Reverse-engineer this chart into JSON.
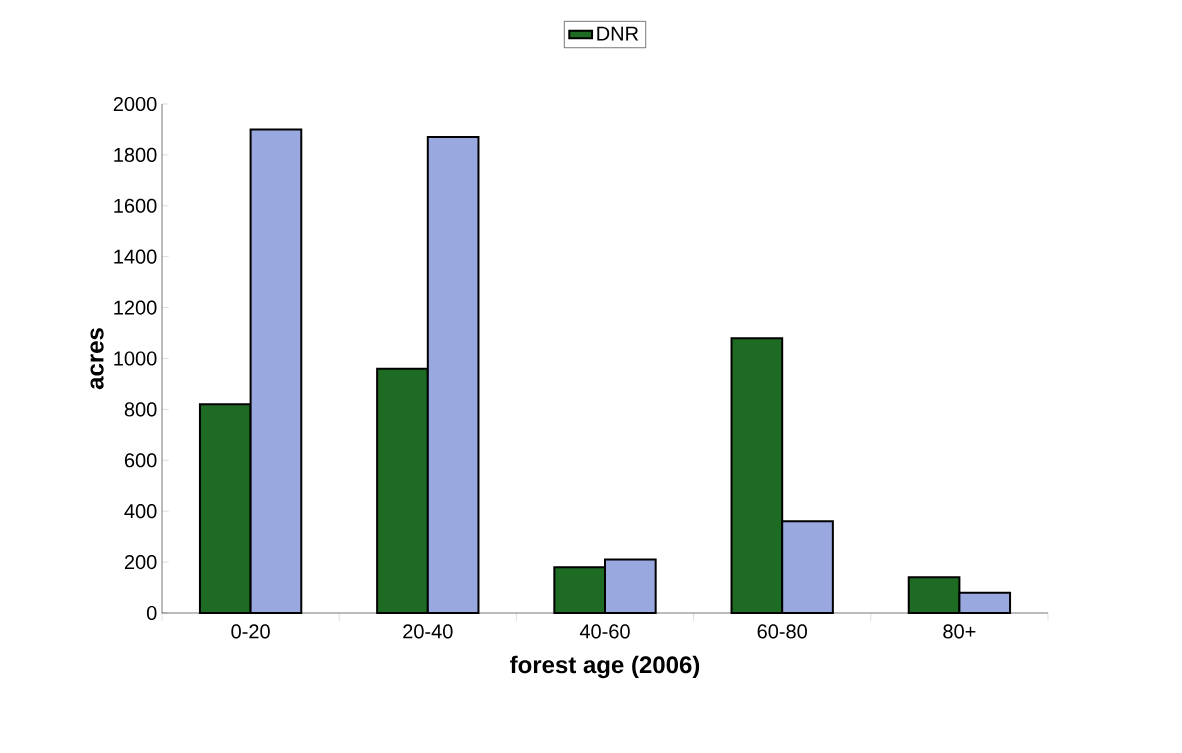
{
  "chart_data": {
    "type": "bar",
    "xlabel": "forest age (2006)",
    "ylabel": "acres",
    "categories": [
      "0-20",
      "20-40",
      "40-60",
      "60-80",
      "80+"
    ],
    "series": [
      {
        "name": "DNR",
        "color": "#1e6b23",
        "values": [
          820,
          960,
          180,
          1080,
          140
        ]
      },
      {
        "color": "#9aa8e0",
        "values": [
          1900,
          1870,
          210,
          360,
          80
        ]
      }
    ],
    "ylim": [
      0,
      2000
    ],
    "yticks": [
      0,
      200,
      400,
      600,
      800,
      1000,
      1200,
      1400,
      1600,
      1800,
      2000
    ],
    "grid": false,
    "legend": "top"
  }
}
